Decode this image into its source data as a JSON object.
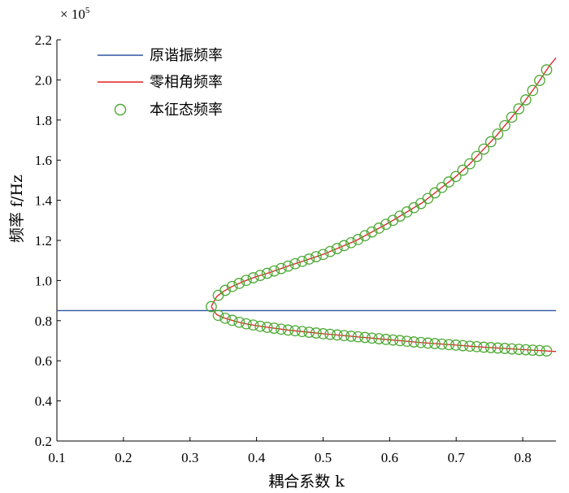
{
  "chart_data": {
    "type": "line",
    "xlabel": "耦合系数 k",
    "ylabel": "频率 f/Hz",
    "y_multiplier": "× 10",
    "y_exponent": "5",
    "xlim": [
      0.1,
      0.85
    ],
    "ylim": [
      0.2,
      2.2
    ],
    "x_ticks": [
      "0.1",
      "0.2",
      "0.3",
      "0.4",
      "0.5",
      "0.6",
      "0.7",
      "0.8"
    ],
    "y_ticks": [
      "0.2",
      "0.4",
      "0.6",
      "0.8",
      "1.0",
      "1.2",
      "1.4",
      "1.6",
      "1.8",
      "2.0",
      "2.2"
    ],
    "legend_position": "top-left",
    "series": [
      {
        "name": "原谐振频率",
        "kind": "hline",
        "color": "#2f55a4",
        "y": 0.85
      },
      {
        "name": "零相角频率",
        "kind": "line",
        "color": "#e02020",
        "x": [
          0.332,
          0.34,
          0.35,
          0.36,
          0.37,
          0.38,
          0.4,
          0.42,
          0.45,
          0.5,
          0.55,
          0.6,
          0.65,
          0.7,
          0.72,
          0.74,
          0.76,
          0.78,
          0.8,
          0.82,
          0.84,
          0.85
        ],
        "upper": [
          0.87,
          0.92,
          0.945,
          0.965,
          0.98,
          0.995,
          1.02,
          1.04,
          1.075,
          1.13,
          1.2,
          1.29,
          1.39,
          1.52,
          1.58,
          1.65,
          1.72,
          1.8,
          1.88,
          1.97,
          2.07,
          2.11
        ],
        "lower": [
          0.87,
          0.83,
          0.815,
          0.805,
          0.795,
          0.787,
          0.775,
          0.765,
          0.752,
          0.735,
          0.72,
          0.705,
          0.69,
          0.678,
          0.673,
          0.668,
          0.664,
          0.66,
          0.656,
          0.652,
          0.648,
          0.646
        ]
      },
      {
        "name": "本征态频率",
        "kind": "markers",
        "color": "#4aa832",
        "x_start": 0.332,
        "x_step": 0.0105,
        "count": 49
      }
    ]
  }
}
